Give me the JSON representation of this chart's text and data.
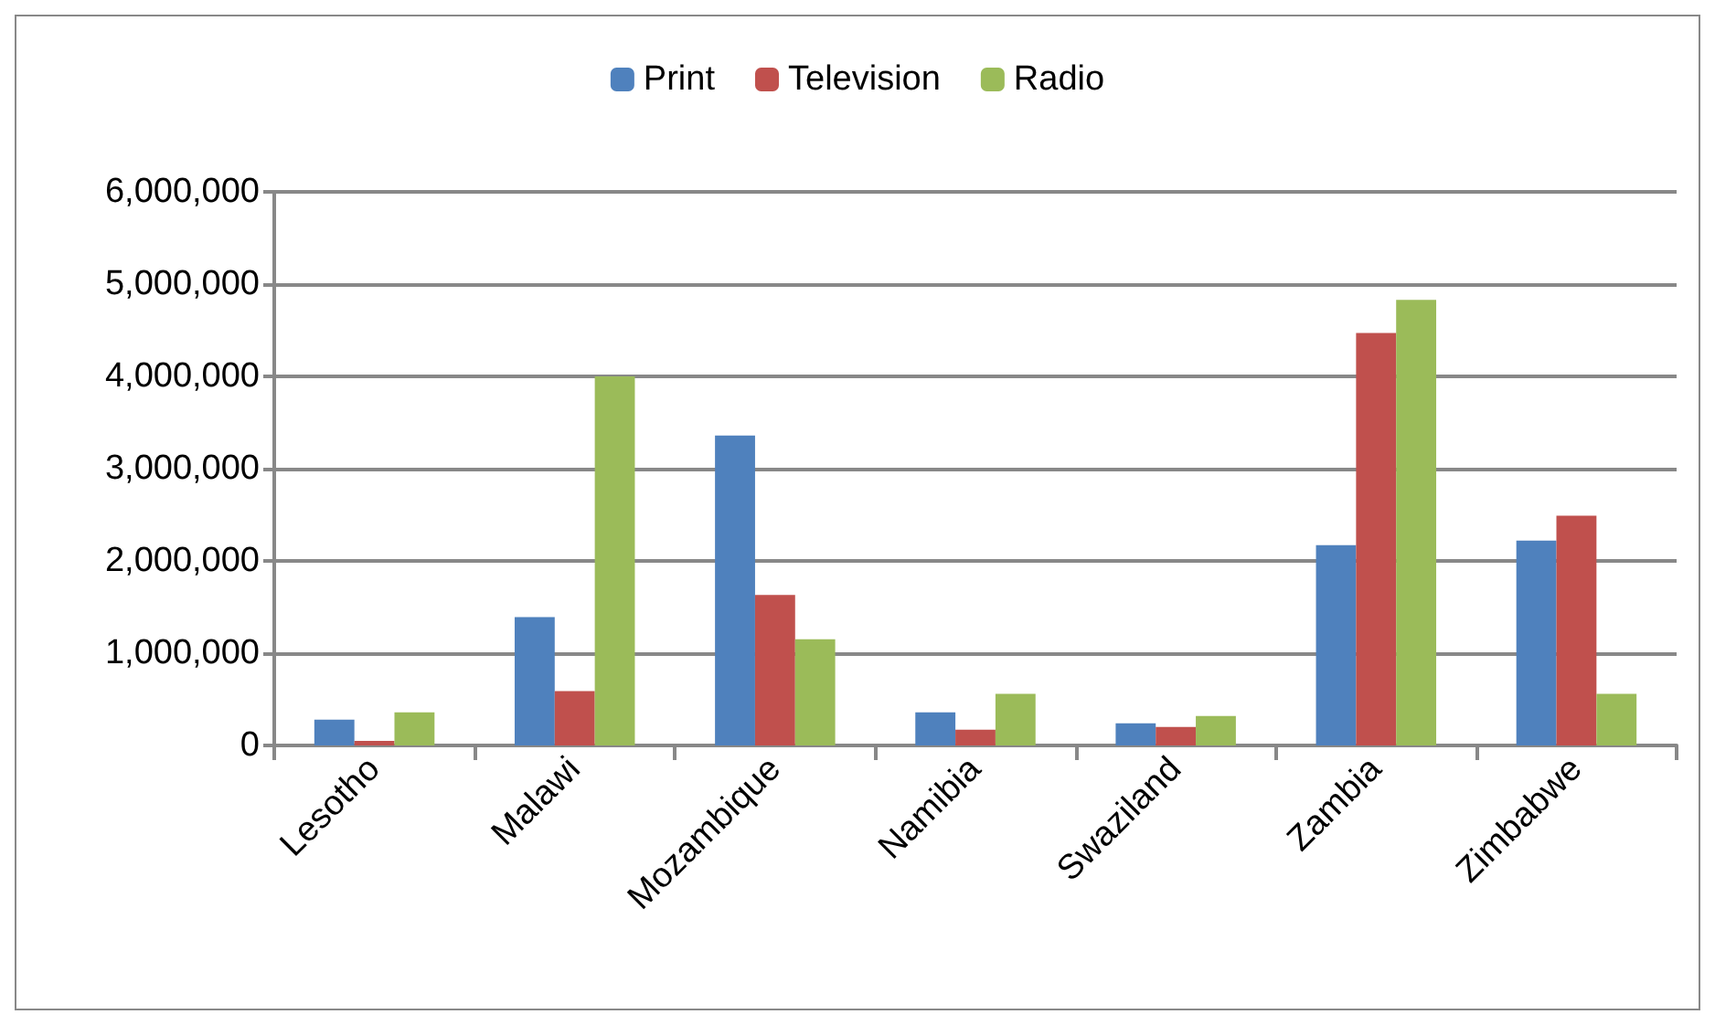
{
  "chart_data": {
    "type": "bar",
    "categories": [
      "Lesotho",
      "Malawi",
      "Mozambique",
      "Namibia",
      "Swaziland",
      "Zambia",
      "Zimbabwe"
    ],
    "series": [
      {
        "name": "Print",
        "color": "#4f81bd",
        "values": [
          280000,
          1390000,
          3360000,
          360000,
          240000,
          2170000,
          2220000
        ]
      },
      {
        "name": "Television",
        "color": "#c0504d",
        "values": [
          50000,
          590000,
          1630000,
          170000,
          200000,
          4470000,
          2490000
        ]
      },
      {
        "name": "Radio",
        "color": "#9bbb59",
        "values": [
          360000,
          4000000,
          1150000,
          560000,
          320000,
          4830000,
          560000
        ]
      }
    ],
    "ylim": [
      0,
      6000000
    ],
    "yticks": [
      0,
      {
        "value": 1000000,
        "label": "1,000,000"
      },
      {
        "value": 2000000,
        "label": "2,000,000"
      },
      {
        "value": 3000000,
        "label": "3,000,000"
      },
      {
        "value": 4000000,
        "label": "4,000,000"
      },
      {
        "value": 5000000,
        "label": "5,000,000"
      },
      {
        "value": 6000000,
        "label": "6,000,000"
      }
    ],
    "grid": "y",
    "legend": "top"
  }
}
